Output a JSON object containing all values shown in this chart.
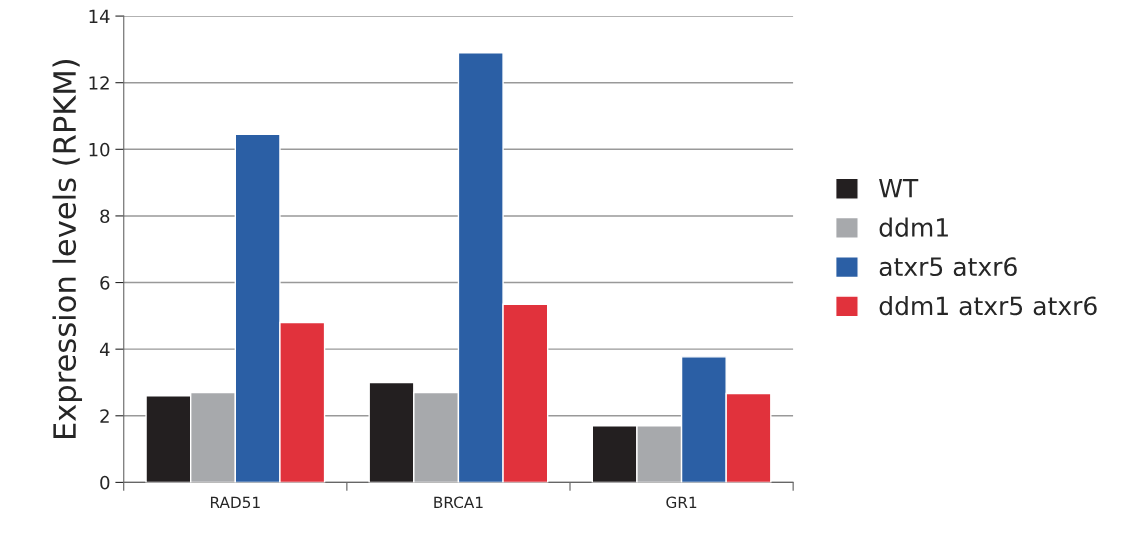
{
  "chart_data": {
    "type": "bar",
    "ylabel": "Expression levels (RPKM)",
    "categories": [
      "RAD51",
      "BRCA1",
      "GR1"
    ],
    "series": [
      {
        "name": "WT",
        "color": "#231f20",
        "values": [
          2.6,
          3.0,
          1.7
        ]
      },
      {
        "name": "ddm1",
        "color": "#a7a9ac",
        "values": [
          2.7,
          2.7,
          1.7
        ]
      },
      {
        "name": "atxr5 atxr6",
        "color": "#2b5fa5",
        "values": [
          10.45,
          12.9,
          3.77
        ]
      },
      {
        "name": "ddm1 atxr5 atxr6",
        "color": "#e1323c",
        "values": [
          4.8,
          5.35,
          2.67
        ]
      }
    ],
    "ylim": [
      0,
      14
    ],
    "yticks": [
      0,
      2,
      4,
      6,
      8,
      10,
      12,
      14
    ],
    "grid": "y",
    "legend": "right"
  }
}
